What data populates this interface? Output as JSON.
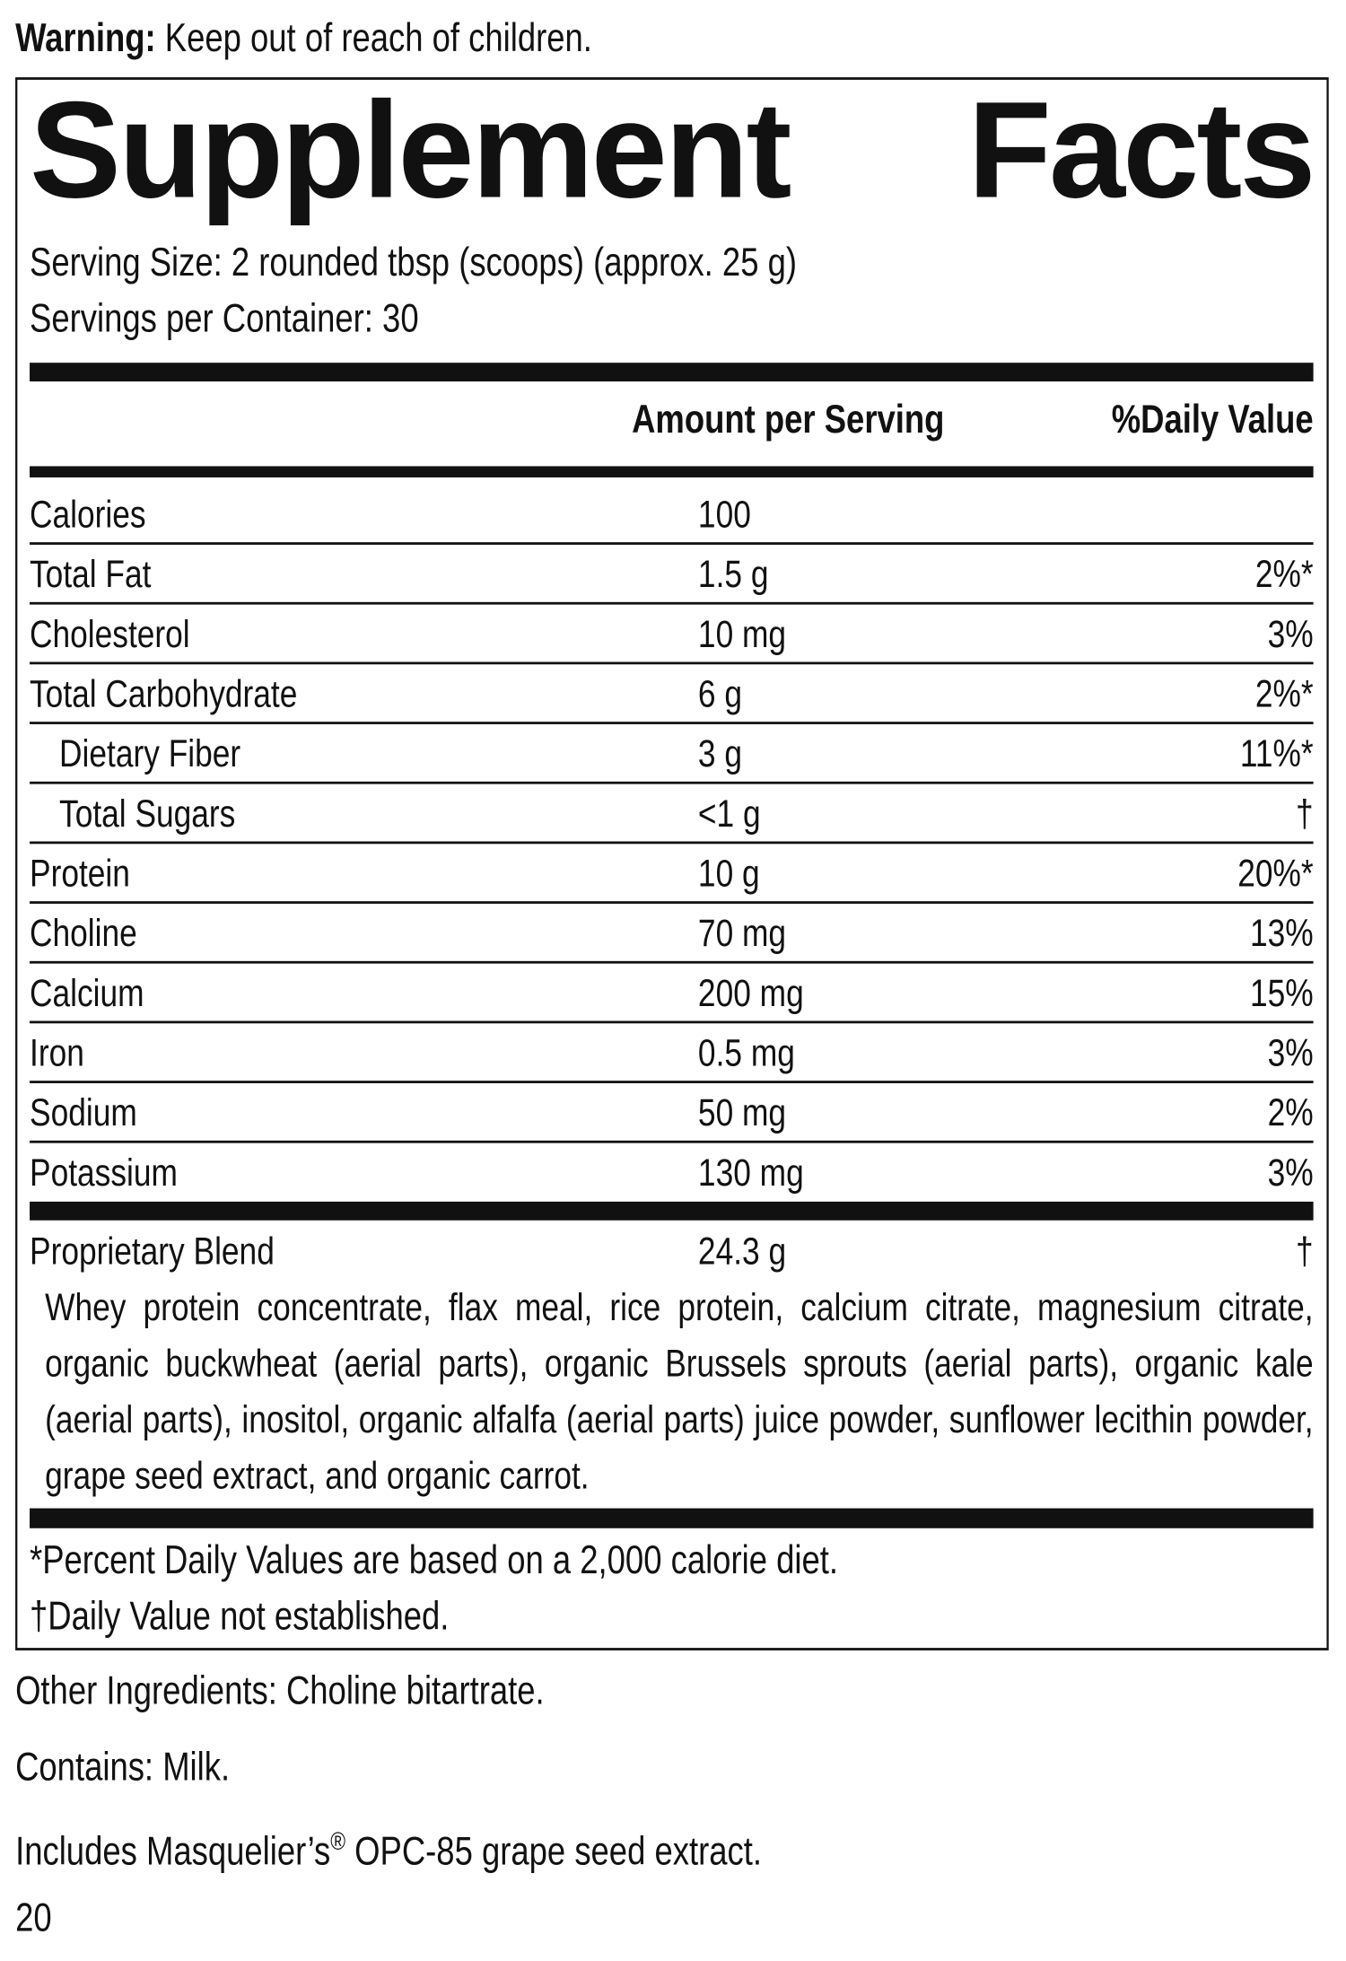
{
  "warning": {
    "label": "Warning:",
    "text": "Keep out of reach of children."
  },
  "title": "Supplement Facts",
  "serving_size": "Serving Size: 2 rounded tbsp (scoops) (approx. 25 g)",
  "servings_per_container": "Servings per Container: 30",
  "header": {
    "amount": "Amount per Serving",
    "daily_value": "%Daily Value"
  },
  "nutrients": [
    {
      "name": "Calories",
      "amount": "100"
    },
    {
      "name": "Total Fat",
      "amount": "1.5 g",
      "daily_value": "2%*"
    },
    {
      "name": "Cholesterol",
      "amount": "10 mg",
      "daily_value": "3%"
    },
    {
      "name": "Total Carbohydrate",
      "amount": "6 g",
      "daily_value": "2%*",
      "sub": [
        {
          "name": "Dietary Fiber",
          "amount": "3 g",
          "daily_value": "11%*"
        },
        {
          "name": "Total Sugars",
          "amount": "<1 g",
          "daily_value": "†"
        }
      ]
    },
    {
      "name": "Protein",
      "amount": "10 g",
      "daily_value": "20%*"
    },
    {
      "name": "Choline",
      "amount": "70 mg",
      "daily_value": "13%"
    },
    {
      "name": "Calcium",
      "amount": "200 mg",
      "daily_value": "15%"
    },
    {
      "name": "Iron",
      "amount": "0.5 mg",
      "daily_value": "3%"
    },
    {
      "name": "Sodium",
      "amount": "50 mg",
      "daily_value": "2%"
    },
    {
      "name": "Potassium",
      "amount": "130 mg",
      "daily_value": "3%"
    }
  ],
  "proprietary_blend": {
    "name": "Proprietary Blend",
    "amount": "24.3 g",
    "daily_value": "†",
    "ingredients": "Whey protein concentrate, flax meal, rice protein, calcium citrate, magnesium citrate, organic buckwheat (aerial parts), organic Brussels sprouts (aerial parts), organic kale (aerial parts), inositol, organic alfalfa (aerial parts) juice powder, sunflower lecithin powder, grape seed extract, and organic carrot."
  },
  "footnotes": [
    "*Percent Daily Values are based on a 2,000 calorie diet.",
    "†Daily Value not established."
  ],
  "other_ingredients": "Other Ingredients: Choline bitartrate.",
  "contains": "Contains: Milk.",
  "includes": {
    "text": "Includes Masquelier’s",
    "mark": "®",
    "rest": " OPC-85 grape seed extract."
  },
  "page_number": "20"
}
